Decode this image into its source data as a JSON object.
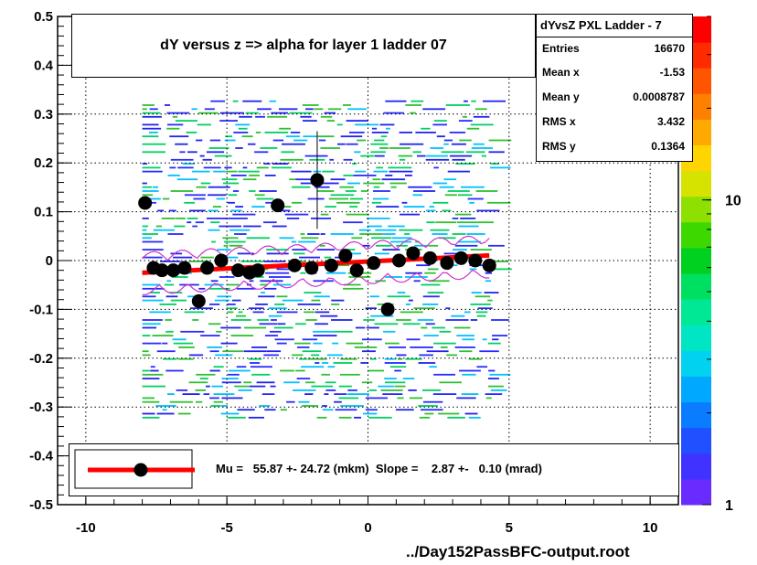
{
  "title": "dY versus  z  => alpha for layer 1 ladder 07",
  "footer": "../Day152PassBFC-output.root",
  "stats": {
    "name": "dYvsZ PXL Ladder - 7",
    "rows": [
      {
        "label": "Entries",
        "value": "16670"
      },
      {
        "label": "Mean x",
        "value": "-1.53"
      },
      {
        "label": "Mean y",
        "value": "0.0008787"
      },
      {
        "label": "RMS x",
        "value": "3.432"
      },
      {
        "label": "RMS y",
        "value": "0.1364"
      }
    ]
  },
  "fit_text": "Mu =   55.87 +- 24.72 (mkm)  Slope =    2.87 +-   0.10 (mrad)",
  "colors": {
    "fit_line": "#ff0000",
    "points": "#000000",
    "profile": "#cc33cc",
    "palette": [
      "#6a2bff",
      "#4033ff",
      "#2050ff",
      "#0a7cff",
      "#00a8ff",
      "#00d2f0",
      "#00e6c4",
      "#00e895",
      "#00e060",
      "#00d020",
      "#3cd800",
      "#8ee000",
      "#d6e200",
      "#ffd400",
      "#ffaa00",
      "#ff8000",
      "#ff5500",
      "#ff2b00",
      "#ff0000"
    ],
    "scatter": [
      "#2a2aff",
      "#2222ee",
      "#00c0ff",
      "#00d060",
      "#30c030"
    ]
  },
  "chart_data": {
    "type": "heatmap",
    "xlim": [
      -11,
      11
    ],
    "ylim": [
      -0.5,
      0.5
    ],
    "x_ticks": [
      -10,
      -5,
      0,
      5,
      10
    ],
    "x_tick_labels": [
      "-10",
      "-5",
      "0",
      "5",
      "10"
    ],
    "y_ticks": [
      -0.5,
      -0.4,
      -0.3,
      -0.2,
      -0.1,
      0,
      0.1,
      0.2,
      0.3,
      0.4,
      0.5
    ],
    "y_tick_labels": [
      "-0.5",
      "-0.4",
      "-0.3",
      "-0.2",
      "-0.1",
      "0",
      "0.1",
      "0.2",
      "0.3",
      "0.4",
      "0.5"
    ],
    "grid": true,
    "colorbar": {
      "scale": "log",
      "min": 1,
      "max": 40,
      "labels": [
        {
          "value": 1,
          "text": "1"
        },
        {
          "value": 10,
          "text": "10"
        }
      ]
    },
    "scatter_region": {
      "xmin": -8,
      "xmax": 4.4,
      "ymin": -0.32,
      "ymax": 0.33
    },
    "profile_points": {
      "x": [
        -7.9,
        -7.6,
        -7.3,
        -6.9,
        -6.5,
        -6.0,
        -5.7,
        -5.2,
        -4.6,
        -4.2,
        -3.9,
        -3.2,
        -2.6,
        -2.0,
        -1.8,
        -1.3,
        -0.8,
        -0.4,
        0.2,
        0.7,
        1.1,
        1.6,
        2.2,
        2.8,
        3.3,
        3.8,
        4.3
      ],
      "y": [
        0.118,
        -0.015,
        -0.02,
        -0.02,
        -0.015,
        -0.083,
        -0.015,
        0.0,
        -0.02,
        -0.025,
        -0.02,
        0.113,
        -0.01,
        -0.015,
        0.165,
        -0.01,
        0.01,
        -0.02,
        -0.005,
        -0.1,
        0.0,
        0.015,
        0.005,
        -0.005,
        0.005,
        0.0,
        -0.01
      ],
      "err": [
        0,
        0,
        0,
        0,
        0,
        0,
        0,
        0,
        0,
        0,
        0,
        0,
        0,
        0,
        0.1,
        0,
        0,
        0,
        0,
        0,
        0,
        0,
        0,
        0,
        0,
        0,
        0
      ]
    },
    "fit_line": {
      "x": [
        -8.0,
        4.3
      ],
      "y": [
        -0.025,
        0.0105
      ]
    }
  }
}
